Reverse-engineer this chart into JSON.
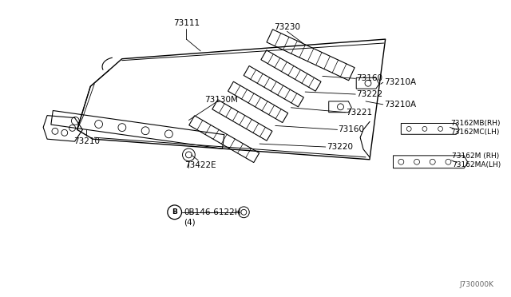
{
  "bg_color": "#ffffff",
  "line_color": "#000000",
  "label_color": "#000000",
  "fig_width": 6.4,
  "fig_height": 3.72,
  "dpi": 100,
  "watermark": "J730000K",
  "bolt_label": "0B146-6122H",
  "bolt_label2": "(4)"
}
